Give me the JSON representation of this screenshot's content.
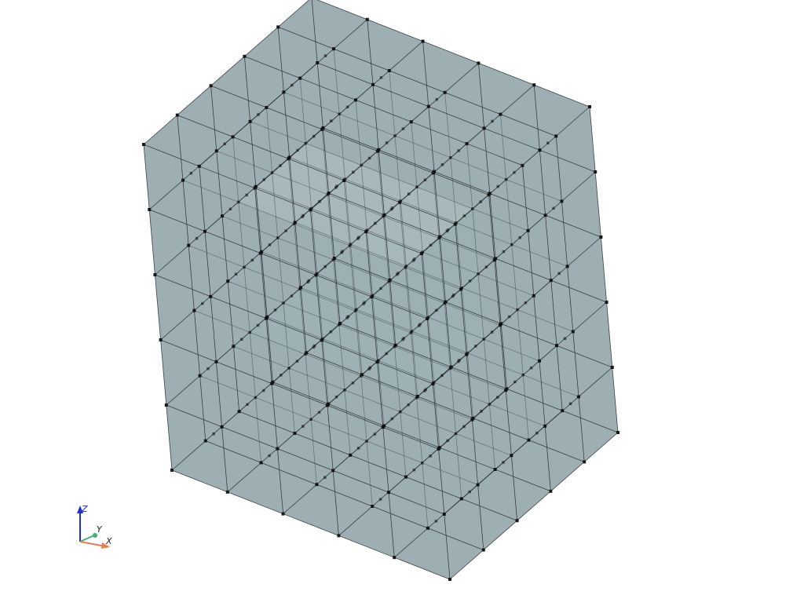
{
  "scene": {
    "mesh": {
      "divisions": 5,
      "face_color": "#8fa3a7",
      "edge_color": "#2d3436",
      "point_color": "#111111"
    },
    "axes": {
      "x_label": "X",
      "y_label": "Y",
      "z_label": "Z",
      "x_color": "#e87c4e",
      "y_color": "#3cb371",
      "z_color": "#1c2fd6"
    }
  }
}
